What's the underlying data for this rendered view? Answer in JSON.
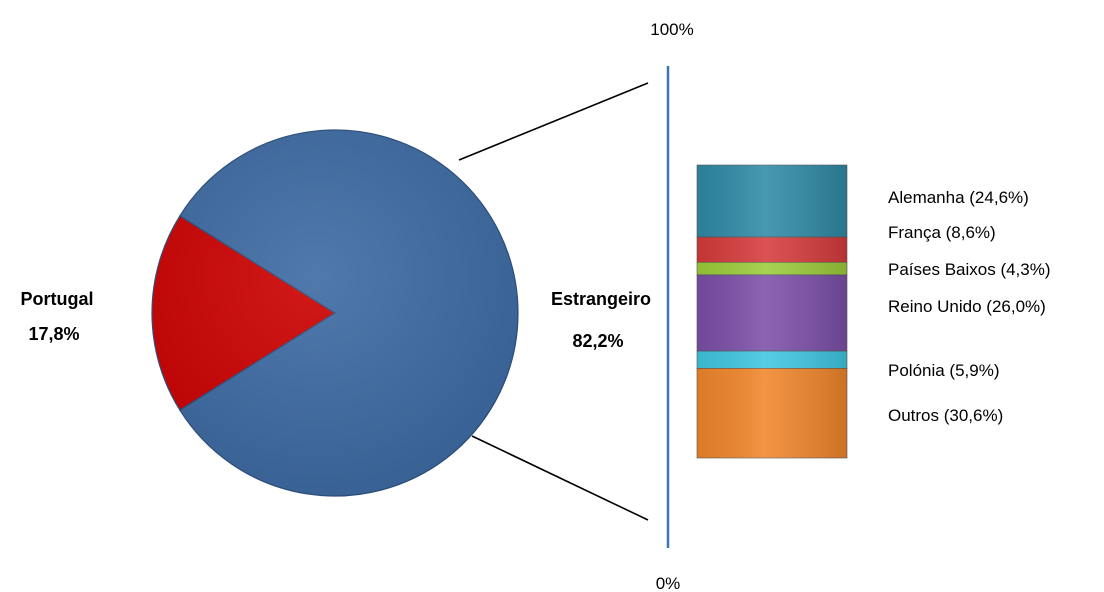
{
  "chart_data": [
    {
      "type": "pie",
      "slices": [
        {
          "label": "Portugal",
          "value": 17.8,
          "value_label": "17,8%",
          "color": "#cc0000"
        },
        {
          "label": "Estrangeiro",
          "value": 82.2,
          "value_label": "82,2%",
          "color": "#3d6aa3"
        }
      ]
    },
    {
      "type": "bar",
      "stacked": true,
      "axis": {
        "top_label": "100%",
        "bottom_label": "0%"
      },
      "segments": [
        {
          "label": "Alemanha (24,6%)",
          "value": 24.6,
          "color": "#2f8aa6"
        },
        {
          "label": "França (8,6%)",
          "value": 8.6,
          "color": "#d63b3b"
        },
        {
          "label": "Países Baixos (4,3%)",
          "value": 4.3,
          "color": "#9ccc3a"
        },
        {
          "label": "Reino Unido (26,0%)",
          "value": 26.0,
          "color": "#7b4fa8"
        },
        {
          "label": "Polónia (5,9%)",
          "value": 5.9,
          "color": "#3fc6e0"
        },
        {
          "label": "Outros (30,6%)",
          "value": 30.6,
          "color": "#f0852a"
        }
      ]
    }
  ]
}
